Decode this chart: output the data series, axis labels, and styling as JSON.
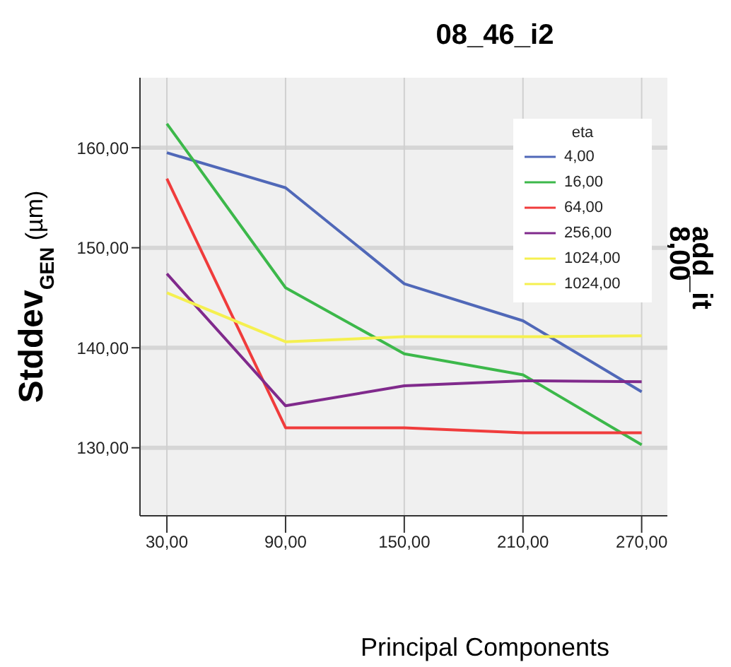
{
  "chart_data": {
    "type": "line",
    "title": "08_46_i2",
    "xlabel": "Principal Components",
    "ylabel": "Stddev$_{GEN}$ (µm)",
    "annotations": [
      "add_it",
      "8,00"
    ],
    "legend_title": "eta",
    "legend": "top right",
    "grid": true,
    "marker": "none",
    "line_style": "solid",
    "x": [
      30,
      90,
      150,
      210,
      270
    ],
    "xlim": [
      16.4,
      283
    ],
    "xticks": [
      {
        "value": 30,
        "label": "30,00"
      },
      {
        "value": 90,
        "label": "90,00"
      },
      {
        "value": 150,
        "label": "150,00"
      },
      {
        "value": 210,
        "label": "210,00"
      },
      {
        "value": 270,
        "label": "270,00"
      }
    ],
    "ylim": [
      123.2,
      167
    ],
    "yticks": [
      {
        "value": 130,
        "label": "130,00"
      },
      {
        "value": 140,
        "label": "140,00"
      },
      {
        "value": 150,
        "label": "150,00"
      },
      {
        "value": 160,
        "label": "160,00"
      }
    ],
    "series": [
      {
        "name": "4,00",
        "color": "#5068b8",
        "values": [
          159.5,
          156.0,
          146.4,
          142.7,
          135.6
        ]
      },
      {
        "name": "16,00",
        "color": "#3cb84a",
        "values": [
          162.4,
          146.0,
          139.4,
          137.3,
          130.3
        ]
      },
      {
        "name": "64,00",
        "color": "#f03c3c",
        "values": [
          156.9,
          132.0,
          132.0,
          131.5,
          131.5
        ]
      },
      {
        "name": "256,00",
        "color": "#802a8c",
        "values": [
          147.4,
          134.2,
          136.2,
          136.7,
          136.6
        ]
      },
      {
        "name": "1024,00",
        "color": "#f5f050",
        "values": [
          145.5,
          140.6,
          141.1,
          141.1,
          141.2
        ]
      },
      {
        "name": "1024,00",
        "color": "#f5f050",
        "values": [
          null,
          null,
          null,
          null,
          null
        ]
      }
    ]
  }
}
